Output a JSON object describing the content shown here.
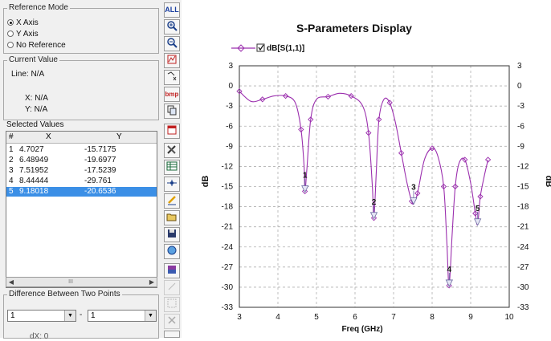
{
  "reference_mode": {
    "legend": "Reference Mode",
    "options": [
      "X Axis",
      "Y Axis",
      "No Reference"
    ],
    "selected": "X Axis"
  },
  "current_value": {
    "legend": "Current Value",
    "line": "Line: N/A",
    "x": "X: N/A",
    "y": "Y: N/A"
  },
  "selected_values": {
    "legend": "Selected Values",
    "headers": [
      "#",
      "X",
      "Y"
    ],
    "rows": [
      {
        "n": "1",
        "x": "4.7027",
        "y": "-15.7175"
      },
      {
        "n": "2",
        "x": "6.48949",
        "y": "-19.6977"
      },
      {
        "n": "3",
        "x": "7.51952",
        "y": "-17.5239"
      },
      {
        "n": "4",
        "x": "8.44444",
        "y": "-29.761"
      },
      {
        "n": "5",
        "x": "9.18018",
        "y": "-20.6536"
      }
    ],
    "selected_row": 5,
    "scroll_thumb": "III"
  },
  "difference": {
    "legend": "Difference Between Two Points",
    "from": "1",
    "separator": "-",
    "to": "1",
    "result_partial": "dX: 0"
  },
  "toolbar": {
    "buttons": [
      "all-button",
      "zoom-in-button",
      "zoom-out-button",
      "marker-button",
      "cursor-button",
      "bmp-export-button",
      "copy-button",
      "data-window-button",
      "properties-button",
      "table-button",
      "axes-button",
      "pencil-button",
      "open-button",
      "save-button",
      "print-button",
      "color-button",
      "tool-disabled-1",
      "tool-disabled-2",
      "delete-button",
      "refresh-button"
    ],
    "all_label": "ALL",
    "bmp_label": "bmp"
  },
  "colors": {
    "trace": "#9b2fae",
    "panel_bg": "#f0f0f0",
    "selection": "#3b8fe6",
    "grid": "#b0b0b0"
  },
  "chart_data": {
    "type": "line",
    "title": "S-Parameters Display",
    "xlabel": "Freq (GHz)",
    "ylabel": "dB",
    "ylabel_right": "dB",
    "xlim": [
      3,
      10
    ],
    "ylim": [
      -33,
      3
    ],
    "xticks": [
      3,
      4,
      5,
      6,
      7,
      8,
      9,
      10
    ],
    "yticks": [
      3,
      0,
      -3,
      -6,
      -9,
      -12,
      -15,
      -18,
      -21,
      -24,
      -27,
      -30,
      -33
    ],
    "grid": true,
    "legend_position": "top-left",
    "series": [
      {
        "name": "dB[S(1,1)]",
        "color": "#9b2fae",
        "x": [
          3.0,
          3.3,
          3.6,
          3.9,
          4.2,
          4.45,
          4.6,
          4.68,
          4.7,
          4.75,
          4.85,
          5.0,
          5.3,
          5.6,
          5.9,
          6.2,
          6.35,
          6.45,
          6.49,
          6.55,
          6.62,
          6.75,
          6.9,
          7.05,
          7.2,
          7.35,
          7.47,
          7.52,
          7.62,
          7.8,
          8.0,
          8.15,
          8.3,
          8.38,
          8.44,
          8.52,
          8.6,
          8.7,
          8.85,
          9.0,
          9.12,
          9.18,
          9.25,
          9.35,
          9.45
        ],
        "y": [
          -0.8,
          -2.3,
          -2.0,
          -1.5,
          -1.5,
          -2.5,
          -6.5,
          -12.0,
          -15.72,
          -12.5,
          -5.0,
          -2.0,
          -1.6,
          -1.1,
          -1.5,
          -3.0,
          -7.0,
          -15.0,
          -19.7,
          -13.0,
          -5.0,
          -2.0,
          -2.5,
          -5.5,
          -10.0,
          -14.5,
          -17.2,
          -17.52,
          -16.0,
          -11.0,
          -9.3,
          -10.5,
          -15.0,
          -23.0,
          -29.76,
          -22.0,
          -15.0,
          -11.5,
          -11.0,
          -14.5,
          -19.0,
          -20.65,
          -16.5,
          -13.5,
          -11.0
        ]
      }
    ],
    "markers": [
      {
        "label": "1",
        "x": 4.7027,
        "y": -15.7175
      },
      {
        "label": "2",
        "x": 6.48949,
        "y": -19.6977
      },
      {
        "label": "3",
        "x": 7.51952,
        "y": -17.5239
      },
      {
        "label": "4",
        "x": 8.44444,
        "y": -29.761
      },
      {
        "label": "5",
        "x": 9.18018,
        "y": -20.6536
      }
    ]
  }
}
